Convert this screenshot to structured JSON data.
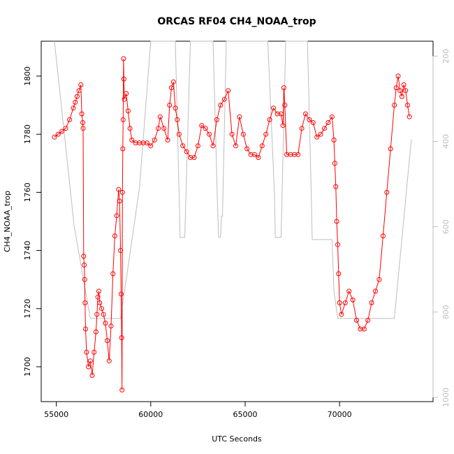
{
  "chart_data": {
    "type": "scatter",
    "title": "ORCAS RF04 CH4_NOAA_trop",
    "xlabel": "UTC Seconds",
    "ylabel": "CH4_NOAA_trop",
    "xlim": [
      54200,
      74950
    ],
    "ylim": [
      1688,
      1812
    ],
    "y2lim": [
      1010,
      165
    ],
    "x_ticks": [
      "55000",
      "60000",
      "65000",
      "70000"
    ],
    "y_ticks": [
      "1700",
      "1720",
      "1740",
      "1760",
      "1780",
      "1800"
    ],
    "y2_ticks": [
      "200",
      "400",
      "600",
      "800",
      "1000"
    ],
    "grid": false,
    "legend": "none",
    "colors": {
      "series": "#ff0000",
      "pressure": "#bdbdbd"
    },
    "series": [
      {
        "x": [
          54900,
          55100,
          55300,
          55500,
          55700,
          55900,
          56000,
          56100,
          56200,
          56300,
          56350,
          56400,
          56420,
          56450,
          56480,
          56500,
          56520,
          56550,
          56600,
          56700,
          56800,
          56900,
          57000,
          57100,
          57150,
          57200,
          57250,
          57300,
          57400,
          57500,
          57600,
          57700,
          57800,
          57900,
          58000,
          58100,
          58200,
          58300,
          58350,
          58400,
          58430,
          58460,
          58480,
          58500,
          58520,
          58540,
          58560,
          58580,
          58600,
          58700,
          58800,
          58900,
          59000,
          59200,
          59400,
          59600,
          59800,
          60000,
          60200,
          60400,
          60500,
          60700,
          60900,
          61000,
          61100,
          61200,
          61300,
          61400,
          61500,
          61700,
          61900,
          62100,
          62300,
          62500,
          62700,
          62900,
          63100,
          63300,
          63500,
          63700,
          63900,
          64100,
          64300,
          64500,
          64700,
          64900,
          65100,
          65300,
          65500,
          65700,
          65900,
          66100,
          66300,
          66500,
          66700,
          66900,
          67000,
          67050,
          67100,
          67200,
          67400,
          67600,
          67800,
          68000,
          68200,
          68400,
          68600,
          68800,
          69000,
          69200,
          69400,
          69600,
          69700,
          69750,
          69800,
          69850,
          69900,
          69950,
          70000,
          70100,
          70300,
          70500,
          70700,
          70900,
          71100,
          71300,
          71500,
          71700,
          71900,
          72100,
          72300,
          72500,
          72700,
          72900,
          73000,
          73100,
          73200,
          73300,
          73400,
          73500,
          73600,
          73700
        ],
        "y": [
          1779,
          1780,
          1781,
          1782,
          1785,
          1789,
          1791,
          1793,
          1795,
          1797,
          1787,
          1784,
          1782,
          1738,
          1735,
          1730,
          1722,
          1713,
          1705,
          1700,
          1702,
          1697,
          1705,
          1712,
          1718,
          1724,
          1726,
          1722,
          1720,
          1718,
          1715,
          1709,
          1702,
          1714,
          1732,
          1745,
          1752,
          1761,
          1757,
          1740,
          1725,
          1710,
          1692,
          1760,
          1775,
          1785,
          1806,
          1799,
          1792,
          1794,
          1788,
          1782,
          1778,
          1777,
          1777,
          1777,
          1777,
          1776,
          1778,
          1782,
          1786,
          1782,
          1778,
          1790,
          1796,
          1798,
          1789,
          1785,
          1780,
          1776,
          1774,
          1772,
          1772,
          1776,
          1783,
          1782,
          1780,
          1776,
          1785,
          1790,
          1792,
          1795,
          1780,
          1776,
          1786,
          1780,
          1775,
          1773,
          1773,
          1772,
          1776,
          1780,
          1785,
          1789,
          1787,
          1787,
          1783,
          1796,
          1790,
          1773,
          1773,
          1773,
          1773,
          1782,
          1787,
          1785,
          1784,
          1779,
          1780,
          1782,
          1784,
          1786,
          1778,
          1770,
          1762,
          1750,
          1742,
          1732,
          1722,
          1718,
          1722,
          1726,
          1723,
          1716,
          1713,
          1713,
          1716,
          1722,
          1726,
          1730,
          1745,
          1760,
          1775,
          1790,
          1796,
          1800,
          1795,
          1793,
          1797,
          1795,
          1790,
          1786
        ]
      },
      {
        "name": "",
        "axis": "right",
        "x": [
          54900,
          55950,
          56800,
          57300,
          58400,
          59400,
          60000,
          60400,
          61300,
          61500,
          61550,
          61800,
          62100,
          62800,
          63300,
          63550,
          63600,
          63700,
          63750,
          63800,
          64000,
          64400,
          64600,
          64800,
          65100,
          65500,
          65900,
          66200,
          66550,
          66600,
          66900,
          67150,
          67300,
          67600,
          67900,
          68100,
          68300,
          68500,
          68550,
          68650,
          69600,
          69700,
          69900,
          70100,
          70700,
          71200,
          72900,
          73800
        ],
        "y": [
          150,
          600,
          815,
          815,
          815,
          510,
          150,
          150,
          150,
          520,
          625,
          625,
          150,
          150,
          150,
          570,
          625,
          625,
          575,
          575,
          150,
          150,
          150,
          150,
          150,
          150,
          150,
          150,
          520,
          625,
          625,
          150,
          150,
          150,
          150,
          150,
          150,
          520,
          630,
          630,
          630,
          750,
          815,
          815,
          815,
          815,
          815,
          395
        ]
      }
    ]
  }
}
